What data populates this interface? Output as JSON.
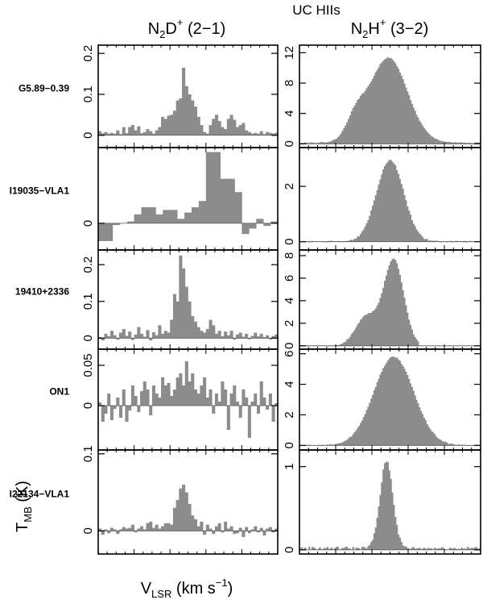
{
  "figure": {
    "suptitle": "UC HIIs",
    "columns": [
      {
        "mol": "N",
        "mol_sub": "2",
        "mol2": "D",
        "mol_sup": "+",
        "transition": "(2−1)"
      },
      {
        "mol": "N",
        "mol_sub": "2",
        "mol2": "H",
        "mol_sup": "+",
        "transition": "(3−2)"
      }
    ],
    "ylabel": {
      "main": "T",
      "sub": "MB",
      "unit": "(K)"
    },
    "xlabel": {
      "main": "V",
      "sub": "LSR",
      "unit": "(km s",
      "unit_sup": "−1",
      "close": ")"
    },
    "colors": {
      "bars": "#8c8c8c",
      "axes": "#000000"
    }
  },
  "chart_data": [
    {
      "type": "bar",
      "source": "G5.89−0.39",
      "column": 0,
      "ylim": [
        -0.03,
        0.22
      ],
      "y_ticks": [
        {
          "v": 0,
          "label": "0"
        },
        {
          "v": 0.1,
          "label": "0.1"
        },
        {
          "v": 0.2,
          "label": "0.2"
        }
      ],
      "values": [
        0.01,
        0.005,
        0.008,
        0.004,
        0.006,
        0.004,
        0.012,
        0.003,
        0.02,
        0.005,
        0.02,
        0.025,
        0.012,
        0.022,
        0.005,
        0.008,
        0.015,
        0.01,
        0.004,
        0.012,
        0.02,
        0.045,
        0.04,
        0.048,
        0.05,
        0.06,
        0.085,
        0.09,
        0.165,
        0.12,
        0.1,
        0.085,
        0.07,
        0.045,
        0.025,
        0.008,
        0.004,
        0.025,
        0.04,
        0.05,
        0.035,
        0.02,
        0.015,
        0.04,
        0.05,
        0.038,
        0.02,
        0.025,
        0.03,
        0.012,
        0.008,
        0.004,
        0.006,
        0.004,
        0.01,
        0.003,
        0.008,
        0.006,
        0.004,
        0.006
      ]
    },
    {
      "type": "bar",
      "source": "G5.89−0.39",
      "column": 1,
      "ylim": [
        -0.5,
        13
      ],
      "y_ticks": [
        {
          "v": 0,
          "label": "0"
        },
        {
          "v": 4,
          "label": "4"
        },
        {
          "v": 8,
          "label": "8"
        },
        {
          "v": 12,
          "label": "12"
        }
      ],
      "profile": {
        "baseline": 0.15,
        "components": [
          {
            "amp": 11.2,
            "center": 0.49,
            "sigma": 0.105
          },
          {
            "amp": 2.6,
            "center": 0.31,
            "sigma": 0.05
          }
        ],
        "noise": 0.12
      }
    },
    {
      "type": "bar",
      "source": "I19035−VLA1",
      "column": 0,
      "ylim": [
        -0.03,
        0.085
      ],
      "y_ticks": [
        {
          "v": 0,
          "label": "0"
        }
      ],
      "values": [
        -0.02,
        -0.02,
        -0.002,
        0,
        0.002,
        0.01,
        0.018,
        0.018,
        0.01,
        0.015,
        0.015,
        0.005,
        0.012,
        0.018,
        0.025,
        0.08,
        0.08,
        0.05,
        0.05,
        0.035,
        -0.012,
        -0.006,
        0.005,
        -0.003,
        0.002
      ]
    },
    {
      "type": "bar",
      "source": "I19035−VLA1",
      "column": 1,
      "ylim": [
        -0.3,
        3.4
      ],
      "y_ticks": [
        {
          "v": 0,
          "label": "0"
        },
        {
          "v": 2,
          "label": "2"
        }
      ],
      "profile": {
        "baseline": 0.0,
        "components": [
          {
            "amp": 2.95,
            "center": 0.5,
            "sigma": 0.075
          }
        ],
        "noise": 0.06
      }
    },
    {
      "type": "bar",
      "source": "19410+2336",
      "column": 0,
      "ylim": [
        -0.03,
        0.24
      ],
      "y_ticks": [
        {
          "v": 0,
          "label": "0"
        },
        {
          "v": 0.1,
          "label": "0.1"
        },
        {
          "v": 0.2,
          "label": "0.2"
        }
      ],
      "values": [
        0.003,
        -0.006,
        0.012,
        0.005,
        0.02,
        0.008,
        -0.004,
        0.015,
        0.025,
        0.006,
        0.018,
        -0.005,
        0.01,
        0.03,
        0.012,
        0.004,
        0.022,
        -0.006,
        0.016,
        0.008,
        0.035,
        0.012,
        0.02,
        0.015,
        0.05,
        0.12,
        0.1,
        0.225,
        0.19,
        0.14,
        0.1,
        0.06,
        0.045,
        0.03,
        0.02,
        0.015,
        0.025,
        0.05,
        0.035,
        0.012,
        0.02,
        0.005,
        0.018,
        0.008,
        0.02,
        -0.004,
        0.01,
        0.015,
        0.004,
        0.012,
        -0.003,
        0.006,
        0.015,
        0.005,
        0.012,
        0.003,
        0.008,
        -0.004,
        0.006,
        0.01
      ]
    },
    {
      "type": "bar",
      "source": "19410+2336",
      "column": 1,
      "ylim": [
        -0.3,
        8.5
      ],
      "y_ticks": [
        {
          "v": 0,
          "label": "0"
        },
        {
          "v": 2,
          "label": "2"
        },
        {
          "v": 4,
          "label": "4"
        },
        {
          "v": 6,
          "label": "6"
        },
        {
          "v": 8,
          "label": "8"
        }
      ],
      "profile": {
        "baseline": 0.0,
        "components": [
          {
            "amp": 7.6,
            "center": 0.52,
            "sigma": 0.055
          },
          {
            "amp": 2.6,
            "center": 0.37,
            "sigma": 0.06
          }
        ],
        "noise": 0.1,
        "end": 0.66
      }
    },
    {
      "type": "bar",
      "source": "ON1",
      "column": 0,
      "ylim": [
        -0.055,
        0.07
      ],
      "y_ticks": [
        {
          "v": 0,
          "label": "0"
        },
        {
          "v": 0.05,
          "label": "0.05"
        }
      ],
      "values": [
        0.004,
        -0.02,
        -0.01,
        0.015,
        -0.018,
        -0.004,
        0.01,
        -0.015,
        0.02,
        -0.02,
        -0.006,
        0.025,
        0.012,
        -0.008,
        0.018,
        0.03,
        0.02,
        -0.012,
        0.025,
        0.015,
        0.01,
        0.035,
        0.025,
        0.028,
        0.012,
        0.02,
        0.035,
        0.04,
        0.025,
        0.055,
        0.03,
        0.04,
        0.02,
        0.015,
        0.025,
        0.035,
        0.01,
        0.02,
        -0.01,
        0.015,
        0.005,
        0.03,
        0.02,
        -0.03,
        0.015,
        0.025,
        0.005,
        -0.015,
        0.02,
        0.01,
        -0.04,
        0.005,
        0.015,
        -0.01,
        0.03,
        0.01,
        -0.005,
        0.015,
        -0.02,
        0.003
      ]
    },
    {
      "type": "bar",
      "source": "ON1",
      "column": 1,
      "ylim": [
        -0.3,
        6.3
      ],
      "y_ticks": [
        {
          "v": 0,
          "label": "0"
        },
        {
          "v": 2,
          "label": "2"
        },
        {
          "v": 4,
          "label": "4"
        },
        {
          "v": 6,
          "label": "6"
        }
      ],
      "profile": {
        "baseline": 0.0,
        "components": [
          {
            "amp": 5.8,
            "center": 0.52,
            "sigma": 0.11
          }
        ],
        "noise": 0.08
      }
    },
    {
      "type": "bar",
      "source": "I22134−VLA1",
      "column": 0,
      "ylim": [
        -0.03,
        0.105
      ],
      "y_ticks": [
        {
          "v": 0,
          "label": "0"
        },
        {
          "v": 0.1,
          "label": "0.1"
        }
      ],
      "values": [
        0.003,
        -0.005,
        0.002,
        -0.003,
        0.004,
        0.002,
        -0.004,
        0.002,
        0.005,
        0.003,
        0.004,
        0.008,
        -0.002,
        0.003,
        0.006,
        0.002,
        0.01,
        0.012,
        0.004,
        0.008,
        0.003,
        0.006,
        0.01,
        0.01,
        0.008,
        0.03,
        0.04,
        0.055,
        0.06,
        0.05,
        0.035,
        0.02,
        0.015,
        0.006,
        0.012,
        -0.005,
        0.008,
        0.003,
        -0.004,
        0.006,
        0.01,
        -0.002,
        0.012,
        0.003,
        0.006,
        -0.004,
        -0.003,
        0.004,
        -0.008,
        0.005,
        -0.003,
        0.002,
        0.006,
        -0.002,
        0.004,
        -0.006,
        0.003,
        0.005,
        -0.002,
        0.003
      ]
    },
    {
      "type": "bar",
      "source": "I22134−VLA1",
      "column": 1,
      "ylim": [
        -0.05,
        1.2
      ],
      "y_ticks": [
        {
          "v": 0,
          "label": "0"
        },
        {
          "v": 1,
          "label": "1"
        }
      ],
      "profile": {
        "baseline": 0.02,
        "components": [
          {
            "amp": 1.05,
            "center": 0.48,
            "sigma": 0.035
          }
        ],
        "noise": 0.04
      }
    }
  ]
}
